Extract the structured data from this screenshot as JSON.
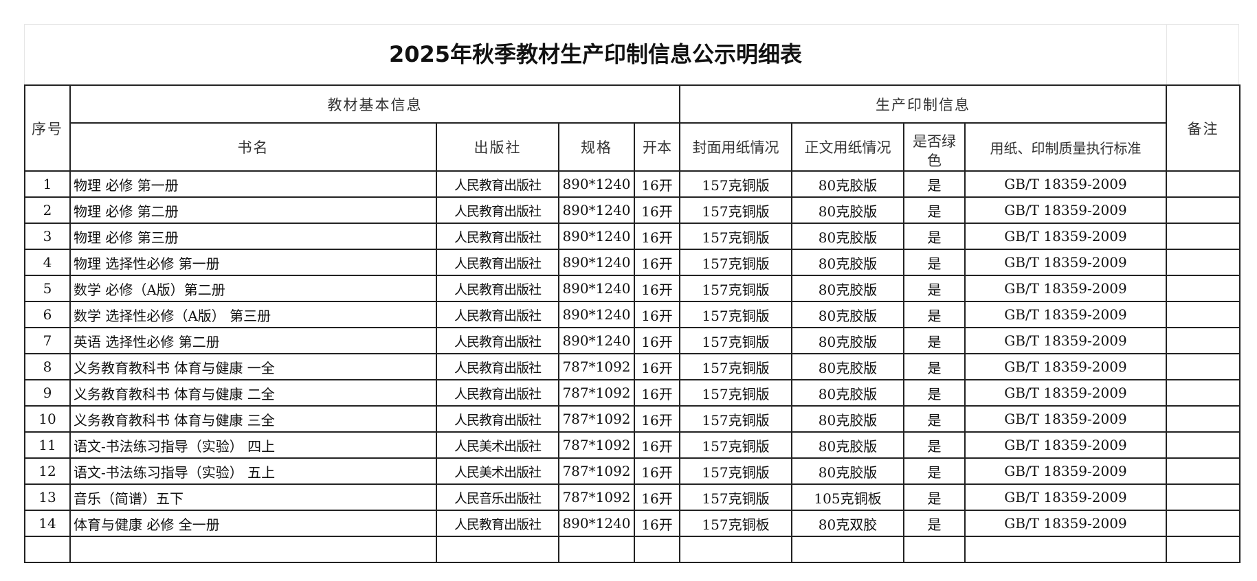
{
  "title": "2025年秋季教材生产印制信息公示明细表",
  "headers": {
    "seq": "序号",
    "basic_group": "教材基本信息",
    "print_group": "生产印制信息",
    "remark": "备注",
    "name": "书名",
    "publisher": "出版社",
    "spec": "规格",
    "format": "开本",
    "cover_paper": "封面用纸情况",
    "body_paper": "正文用纸情况",
    "green": "是否绿色",
    "standard": "用纸、印制质量执行标准"
  },
  "rows": [
    [
      "1",
      "物理 必修 第一册",
      "人民教育出版社",
      "890*1240",
      "16开",
      "157克铜版",
      "80克胶版",
      "是",
      "GB/T 18359-2009",
      ""
    ],
    [
      "2",
      "物理 必修 第二册",
      "人民教育出版社",
      "890*1240",
      "16开",
      "157克铜版",
      "80克胶版",
      "是",
      "GB/T 18359-2009",
      ""
    ],
    [
      "3",
      "物理 必修 第三册",
      "人民教育出版社",
      "890*1240",
      "16开",
      "157克铜版",
      "80克胶版",
      "是",
      "GB/T 18359-2009",
      ""
    ],
    [
      "4",
      "物理 选择性必修 第一册",
      "人民教育出版社",
      "890*1240",
      "16开",
      "157克铜版",
      "80克胶版",
      "是",
      "GB/T 18359-2009",
      ""
    ],
    [
      "5",
      "数学 必修（A版）第二册",
      "人民教育出版社",
      "890*1240",
      "16开",
      "157克铜版",
      "80克胶版",
      "是",
      "GB/T 18359-2009",
      ""
    ],
    [
      "6",
      "数学 选择性必修（A版） 第三册",
      "人民教育出版社",
      "890*1240",
      "16开",
      "157克铜版",
      "80克胶版",
      "是",
      "GB/T 18359-2009",
      ""
    ],
    [
      "7",
      "英语 选择性必修 第二册",
      "人民教育出版社",
      "890*1240",
      "16开",
      "157克铜版",
      "80克胶版",
      "是",
      "GB/T 18359-2009",
      ""
    ],
    [
      "8",
      "义务教育教科书 体育与健康 一全",
      "人民教育出版社",
      "787*1092",
      "16开",
      "157克铜版",
      "80克胶版",
      "是",
      "GB/T 18359-2009",
      ""
    ],
    [
      "9",
      "义务教育教科书 体育与健康 二全",
      "人民教育出版社",
      "787*1092",
      "16开",
      "157克铜版",
      "80克胶版",
      "是",
      "GB/T 18359-2009",
      ""
    ],
    [
      "10",
      "义务教育教科书 体育与健康 三全",
      "人民教育出版社",
      "787*1092",
      "16开",
      "157克铜版",
      "80克胶版",
      "是",
      "GB/T 18359-2009",
      ""
    ],
    [
      "11",
      "语文-书法练习指导（实验） 四上",
      "人民美术出版社",
      "787*1092",
      "16开",
      "157克铜版",
      "80克胶版",
      "是",
      "GB/T 18359-2009",
      ""
    ],
    [
      "12",
      "语文-书法练习指导（实验） 五上",
      "人民美术出版社",
      "787*1092",
      "16开",
      "157克铜版",
      "80克胶版",
      "是",
      "GB/T 18359-2009",
      ""
    ],
    [
      "13",
      "音乐（简谱）五下",
      "人民音乐出版社",
      "787*1092",
      "16开",
      "157克铜版",
      "105克铜板",
      "是",
      "GB/T 18359-2009",
      ""
    ],
    [
      "14",
      "体育与健康 必修 全一册",
      "人民教育出版社",
      "890*1240",
      "16开",
      "157克铜板",
      "80克双胶",
      "是",
      "GB/T 18359-2009",
      ""
    ],
    [
      "",
      "",
      "",
      "",
      "",
      "",
      "",
      "",
      "",
      ""
    ]
  ]
}
